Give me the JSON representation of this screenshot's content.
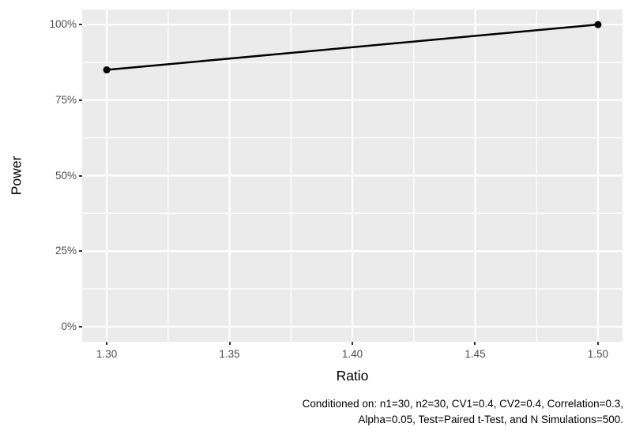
{
  "chart_data": {
    "type": "line",
    "series": [
      {
        "name": "Power",
        "x": [
          1.3,
          1.5
        ],
        "y_percent": [
          85,
          100
        ]
      }
    ],
    "title": "",
    "xlabel": "Ratio",
    "ylabel": "Power",
    "x_ticks": [
      "1.30",
      "1.35",
      "1.40",
      "1.45",
      "1.50"
    ],
    "x_tick_values": [
      1.3,
      1.35,
      1.4,
      1.45,
      1.5
    ],
    "x_minor_values": [
      1.325,
      1.375,
      1.425,
      1.475
    ],
    "y_ticks": [
      "0%",
      "25%",
      "50%",
      "75%",
      "100%"
    ],
    "y_tick_values": [
      0,
      25,
      50,
      75,
      100
    ],
    "y_minor_values": [
      12.5,
      37.5,
      62.5,
      87.5
    ],
    "x_range": [
      1.29,
      1.51
    ],
    "y_range_percent": [
      -5,
      105
    ],
    "grid": "major-and-minor",
    "legend": "none",
    "caption": {
      "line1": "Conditioned on: n1=30, n2=30, CV1=0.4, CV2=0.4, Correlation=0.3,",
      "line2": "Alpha=0.05, Test=Paired t-Test, and N Simulations=500."
    },
    "colors": {
      "panel_background": "#EBEBEB",
      "gridline": "#FFFFFF",
      "line": "#000000",
      "point": "#000000",
      "tick_label": "#4D4D4D",
      "tick_mark": "#333333",
      "axis_title": "#000000",
      "caption_text": "#000000"
    }
  }
}
